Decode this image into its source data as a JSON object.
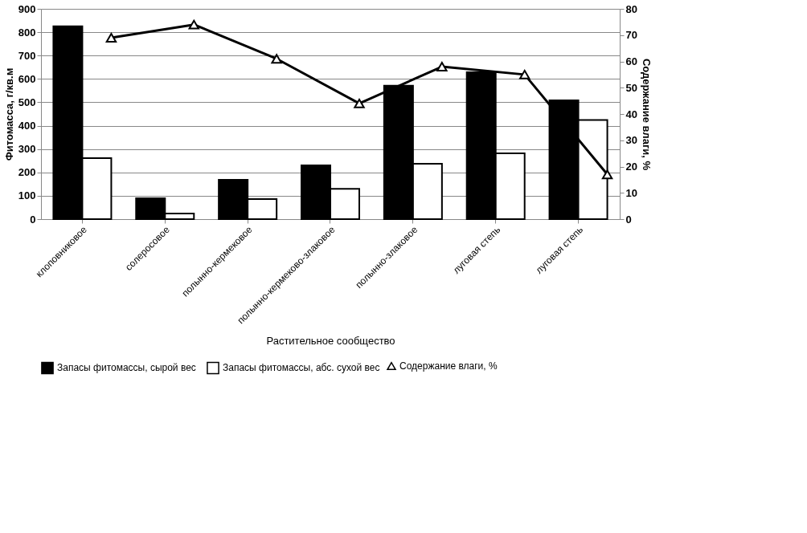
{
  "chart_data": {
    "type": "bar",
    "xlabel": "Растительное сообщество",
    "ylabel": "Фитомасса, г/кв.м",
    "y2label": "Содержание влаги, %",
    "categories": [
      "клоповниковое",
      "солеросовое",
      "полынно-кермековое",
      "полынно-кермеково-злаковое",
      "полынно-злаковое",
      "луговая степь",
      "луговая степь"
    ],
    "series": [
      {
        "name": "Запасы фитомассы, сырой вес",
        "color": "#000000",
        "values": [
          825,
          89,
          168,
          230,
          571,
          629,
          508
        ]
      },
      {
        "name": "Запасы фитомассы, абс. сухой вес",
        "color": "#ffffff",
        "values": [
          261,
          24,
          86,
          130,
          237,
          282,
          424
        ]
      },
      {
        "name": "Содержание влаги, %",
        "color": "#000000",
        "type": "line",
        "axis": "y2",
        "marker": "triangle",
        "values": [
          69,
          74,
          61,
          44,
          58,
          55,
          17
        ]
      }
    ],
    "ylim": [
      0,
      900
    ],
    "yticks": [
      0,
      100,
      200,
      300,
      400,
      500,
      600,
      700,
      800,
      900
    ],
    "y2lim": [
      0,
      80
    ],
    "y2ticks": [
      0,
      10,
      20,
      30,
      40,
      50,
      60,
      70,
      80
    ],
    "grid": "y",
    "legend": "bottom"
  }
}
